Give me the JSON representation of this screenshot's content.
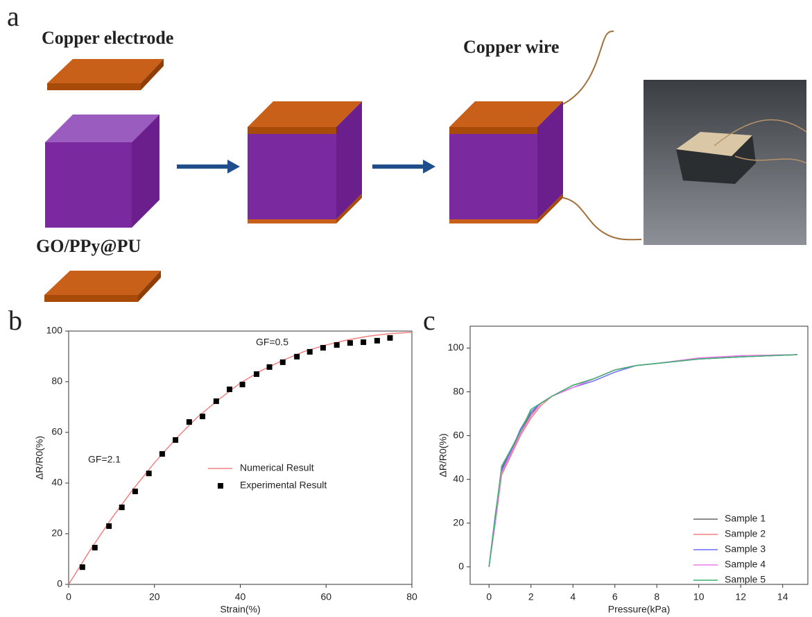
{
  "panel_labels": [
    "a",
    "b",
    "c"
  ],
  "diagram": {
    "labels": [
      "Copper electrode",
      "Copper wire",
      "GO/PPy@PU"
    ]
  },
  "chart_data": [
    {
      "type": "line",
      "x_label": "Strain(%)",
      "y_label": "ΔR/R0(%)",
      "xlim": [
        0,
        80
      ],
      "xticks": [
        0,
        20,
        40,
        60,
        80
      ],
      "ylim": [
        0,
        100
      ],
      "yticks": [
        0,
        20,
        40,
        60,
        80,
        100
      ],
      "grid": false,
      "legend": "center",
      "annotations": [
        "GF=2.1",
        "GF=0.5"
      ],
      "series": [
        {
          "name": "Numerical Result",
          "kind": "line",
          "color": "#f08080",
          "x": [
            0,
            5,
            10,
            15,
            20,
            25,
            30,
            35,
            40,
            45,
            50,
            55,
            60,
            65,
            70,
            75,
            80
          ],
          "values": [
            0,
            13.5,
            26,
            37.5,
            48,
            57.5,
            66,
            73,
            79.5,
            84.5,
            88.5,
            92,
            94.5,
            96.5,
            98,
            99,
            99.5
          ]
        },
        {
          "name": "Experimental Result",
          "kind": "scatter",
          "color": "#000000",
          "x": [
            3.2,
            6.1,
            9.4,
            12.4,
            15.5,
            18.7,
            21.8,
            24.9,
            28.1,
            31.2,
            34.4,
            37.5,
            40.5,
            43.8,
            46.8,
            49.9,
            53.2,
            56.2,
            59.3,
            62.5,
            65.6,
            68.7,
            71.9,
            74.9
          ],
          "values": [
            6.8,
            14.5,
            23,
            30.4,
            36.7,
            43.8,
            51.5,
            57,
            64.1,
            66.3,
            72.3,
            77,
            78.9,
            83,
            85.8,
            87.7,
            89.9,
            91.8,
            93.4,
            94.5,
            95.3,
            95.6,
            96.2,
            97.3
          ]
        }
      ]
    },
    {
      "type": "line",
      "x_label": "Pressure(kPa)",
      "y_label": "ΔR/R0(%)",
      "xlim": [
        -0.9,
        15.2
      ],
      "xticks": [
        0,
        2,
        4,
        6,
        8,
        10,
        12,
        14
      ],
      "ylim": [
        -8,
        110
      ],
      "yticks": [
        0,
        20,
        40,
        60,
        80,
        100
      ],
      "grid": false,
      "legend": "lower right",
      "series": [
        {
          "name": "Sample 1",
          "kind": "line",
          "color": "#666666",
          "x": [
            0,
            0.3,
            0.6,
            1,
            1.5,
            2,
            2.5,
            3,
            4,
            5,
            6,
            7,
            8,
            10,
            12,
            14.7
          ],
          "values": [
            0,
            22,
            45,
            52,
            62,
            70,
            75,
            78,
            83,
            86,
            90,
            92,
            93,
            95,
            96,
            97
          ]
        },
        {
          "name": "Sample 2",
          "kind": "line",
          "color": "#f08080",
          "x": [
            0,
            0.3,
            0.6,
            1,
            1.5,
            2,
            2.5,
            3,
            4,
            5,
            6,
            7,
            8,
            10,
            12,
            14.7
          ],
          "values": [
            0,
            20,
            42,
            50,
            60,
            68,
            74,
            78,
            82,
            86,
            90,
            92,
            93,
            95,
            96.5,
            97
          ]
        },
        {
          "name": "Sample 3",
          "kind": "line",
          "color": "#6b6bff",
          "x": [
            0,
            0.3,
            0.6,
            1,
            1.5,
            2,
            2.5,
            3,
            4,
            5,
            6,
            7,
            8,
            10,
            12,
            14.7
          ],
          "values": [
            0,
            24,
            44,
            52,
            63,
            71,
            75,
            78,
            82,
            85,
            89,
            92,
            93,
            95,
            96,
            97
          ]
        },
        {
          "name": "Sample 4",
          "kind": "line",
          "color": "#e87ae8",
          "x": [
            0,
            0.3,
            0.6,
            1,
            1.5,
            2,
            2.5,
            3,
            4,
            5,
            6,
            7,
            8,
            10,
            12,
            14.7
          ],
          "values": [
            0,
            21,
            43,
            51,
            61,
            69,
            75,
            78,
            82,
            86,
            90,
            92,
            93,
            95.5,
            96.5,
            97
          ]
        },
        {
          "name": "Sample 5",
          "kind": "line",
          "color": "#3cb371",
          "x": [
            0,
            0.3,
            0.6,
            1,
            1.5,
            2,
            2.5,
            3,
            4,
            5,
            6,
            7,
            8,
            10,
            12,
            14.7
          ],
          "values": [
            0,
            23,
            46,
            53,
            62,
            72,
            75,
            78,
            83,
            86,
            90,
            92,
            93,
            95,
            96,
            97
          ]
        }
      ]
    }
  ]
}
